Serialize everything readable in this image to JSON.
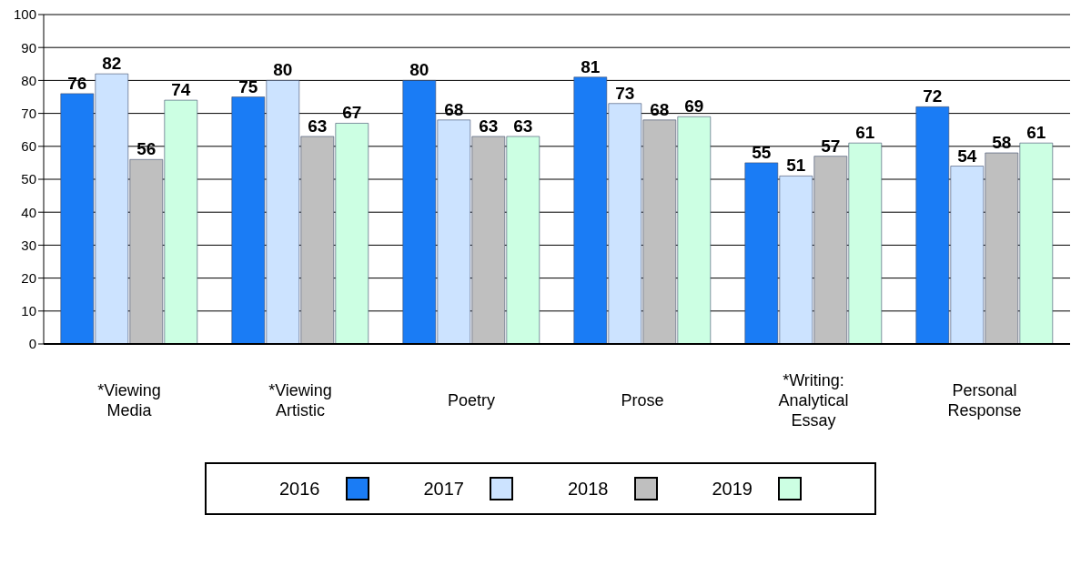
{
  "chart_data": {
    "type": "bar",
    "categories": [
      "*Viewing Media",
      "*Viewing Artistic",
      "Poetry",
      "Prose",
      "*Writing: Analytical Essay",
      "Personal Response"
    ],
    "series": [
      {
        "name": "2016",
        "color": "#1a7cf5",
        "values": [
          76,
          75,
          80,
          81,
          55,
          72
        ]
      },
      {
        "name": "2017",
        "color": "#cce3ff",
        "values": [
          82,
          80,
          68,
          73,
          51,
          54
        ]
      },
      {
        "name": "2018",
        "color": "#bfbfbf",
        "values": [
          56,
          63,
          63,
          68,
          57,
          58
        ]
      },
      {
        "name": "2019",
        "color": "#ccffe3",
        "values": [
          74,
          67,
          63,
          69,
          61,
          61
        ]
      }
    ],
    "ylim": [
      0,
      100
    ],
    "yticks": [
      0,
      10,
      20,
      30,
      40,
      50,
      60,
      70,
      80,
      90,
      100
    ],
    "grid": "y",
    "data_labels": true,
    "legend": "bottom"
  }
}
